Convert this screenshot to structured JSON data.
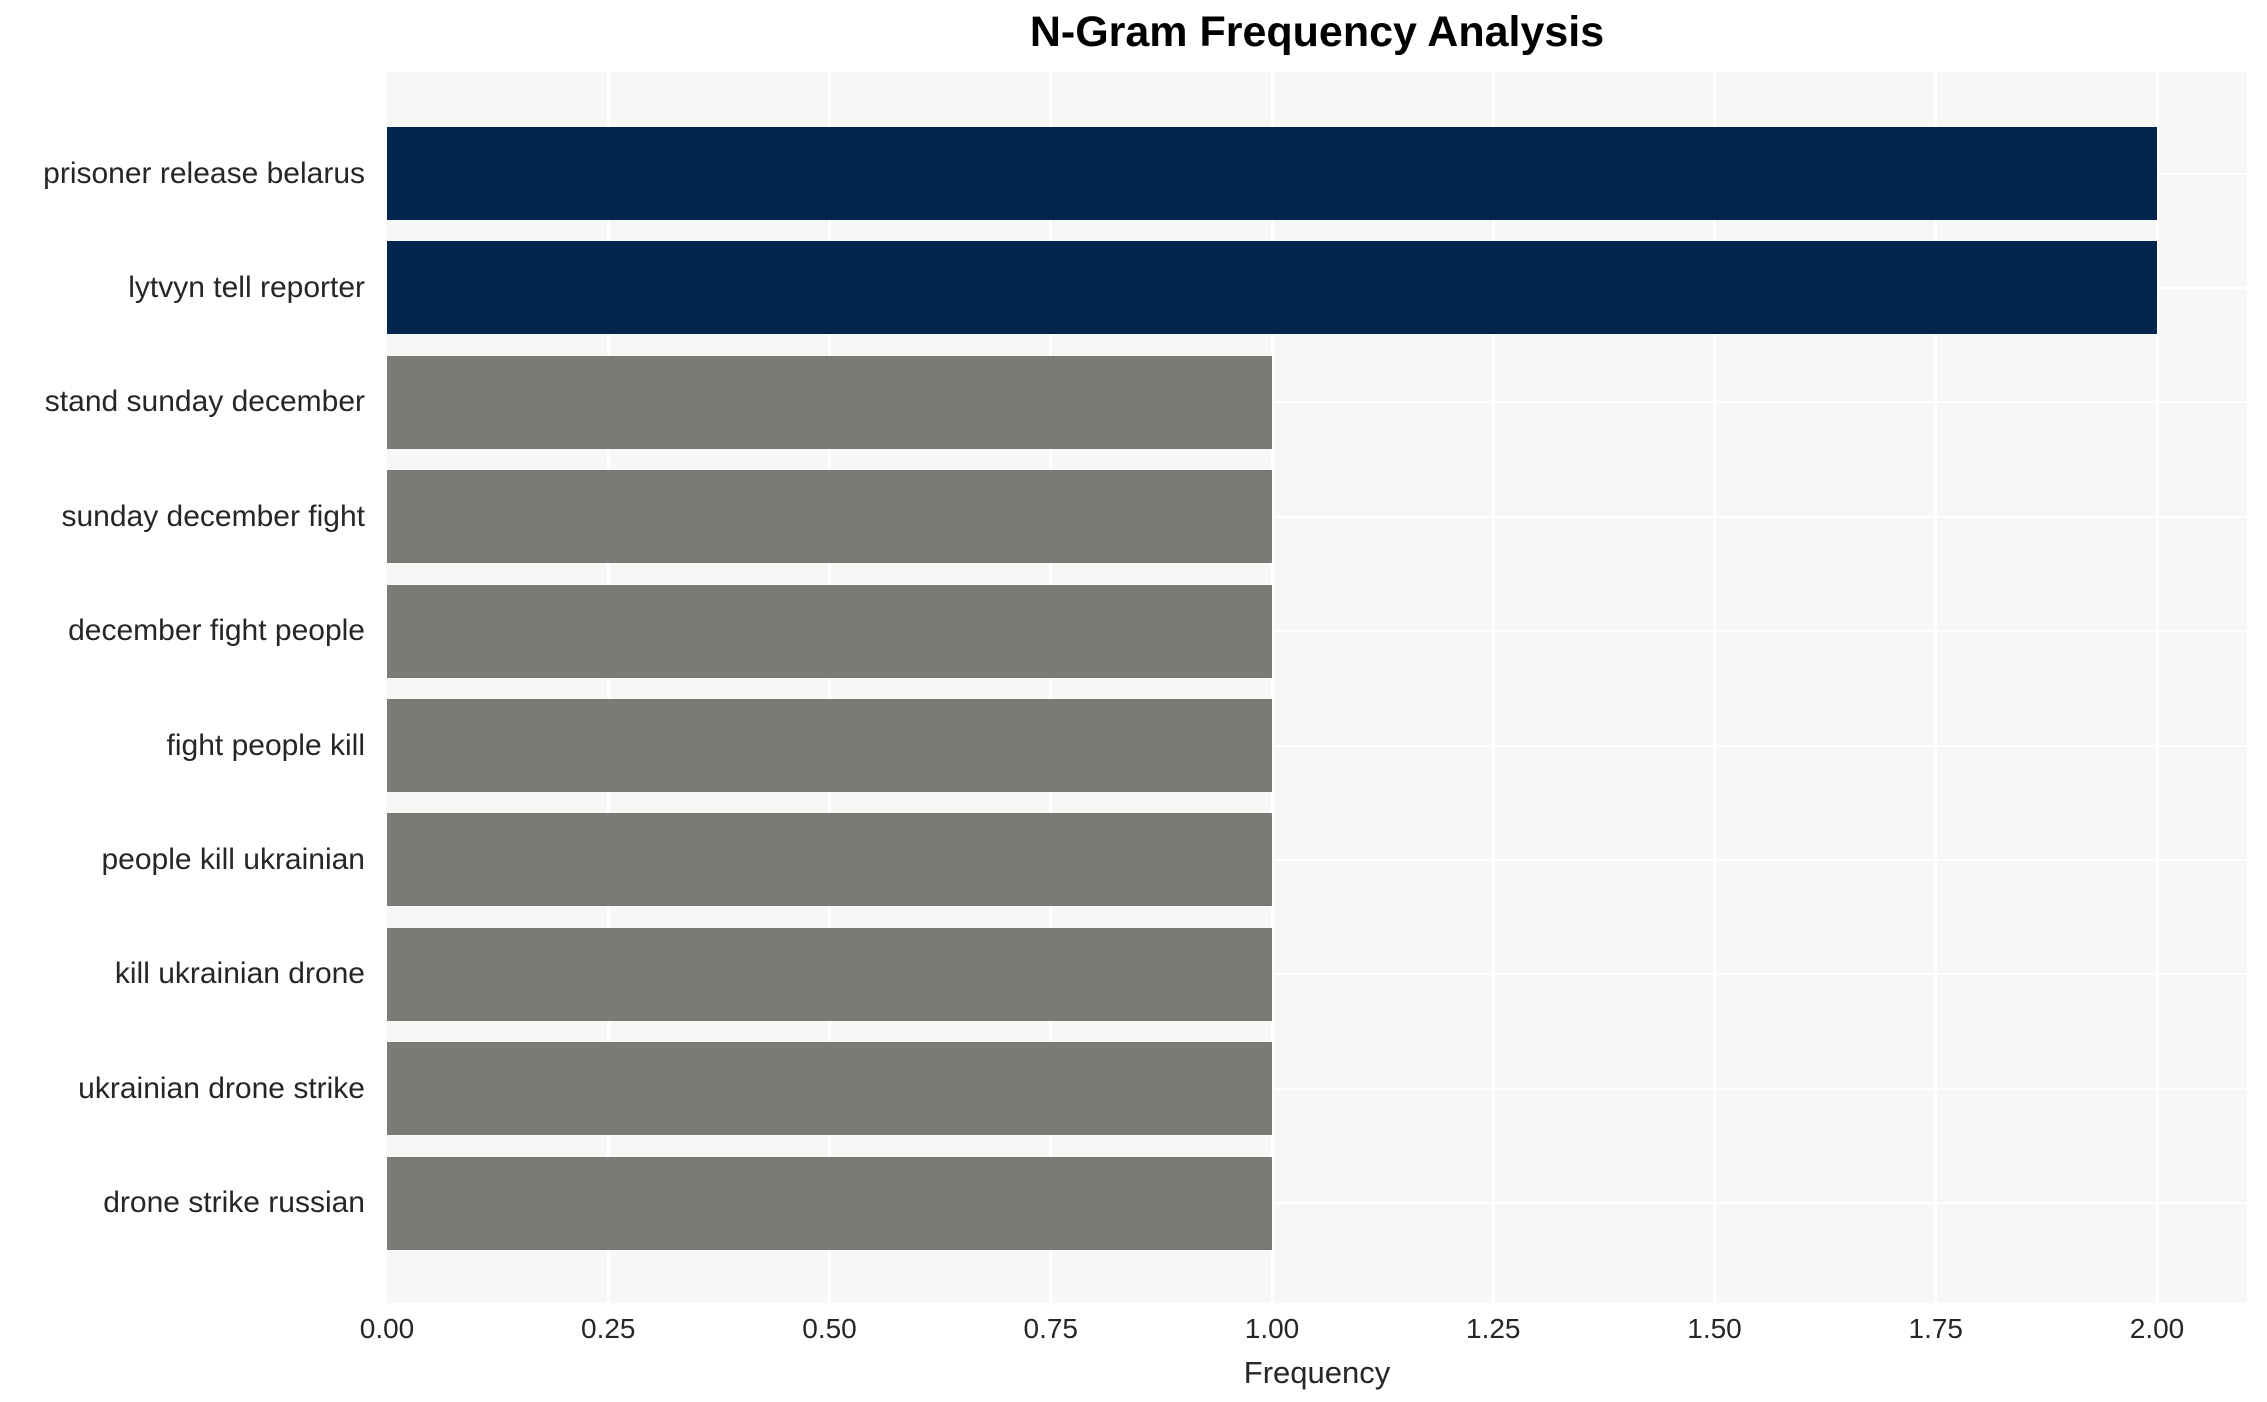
{
  "chart_data": {
    "type": "bar",
    "orientation": "horizontal",
    "title": "N-Gram Frequency Analysis",
    "xlabel": "Frequency",
    "ylabel": "",
    "categories": [
      "prisoner release belarus",
      "lytvyn tell reporter",
      "stand sunday december",
      "sunday december fight",
      "december fight people",
      "fight people kill",
      "people kill ukrainian",
      "kill ukrainian drone",
      "ukrainian drone strike",
      "drone strike russian"
    ],
    "values": [
      2,
      2,
      1,
      1,
      1,
      1,
      1,
      1,
      1,
      1
    ],
    "bar_colors": [
      "#03254e",
      "#03254e",
      "#7b7a77",
      "#7b7a77",
      "#7b7a77",
      "#7b7a77",
      "#7b7a77",
      "#7b7a77",
      "#7b7a77",
      "#7b7a77"
    ],
    "xticks": [
      "0.00",
      "0.25",
      "0.50",
      "0.75",
      "1.00",
      "1.25",
      "1.50",
      "1.75",
      "2.00"
    ],
    "xtick_values": [
      0,
      0.25,
      0.5,
      0.75,
      1.0,
      1.25,
      1.5,
      1.75,
      2.0
    ],
    "xlim": [
      0,
      2.1
    ],
    "grid": true,
    "legend": false,
    "colors": {
      "highlight_bar": "#03254e",
      "default_bar": "#7b7a77",
      "plot_background": "#f7f7f6",
      "grid_line": "#ffffff",
      "tick_text": "#262626",
      "title_text": "#000000"
    }
  }
}
